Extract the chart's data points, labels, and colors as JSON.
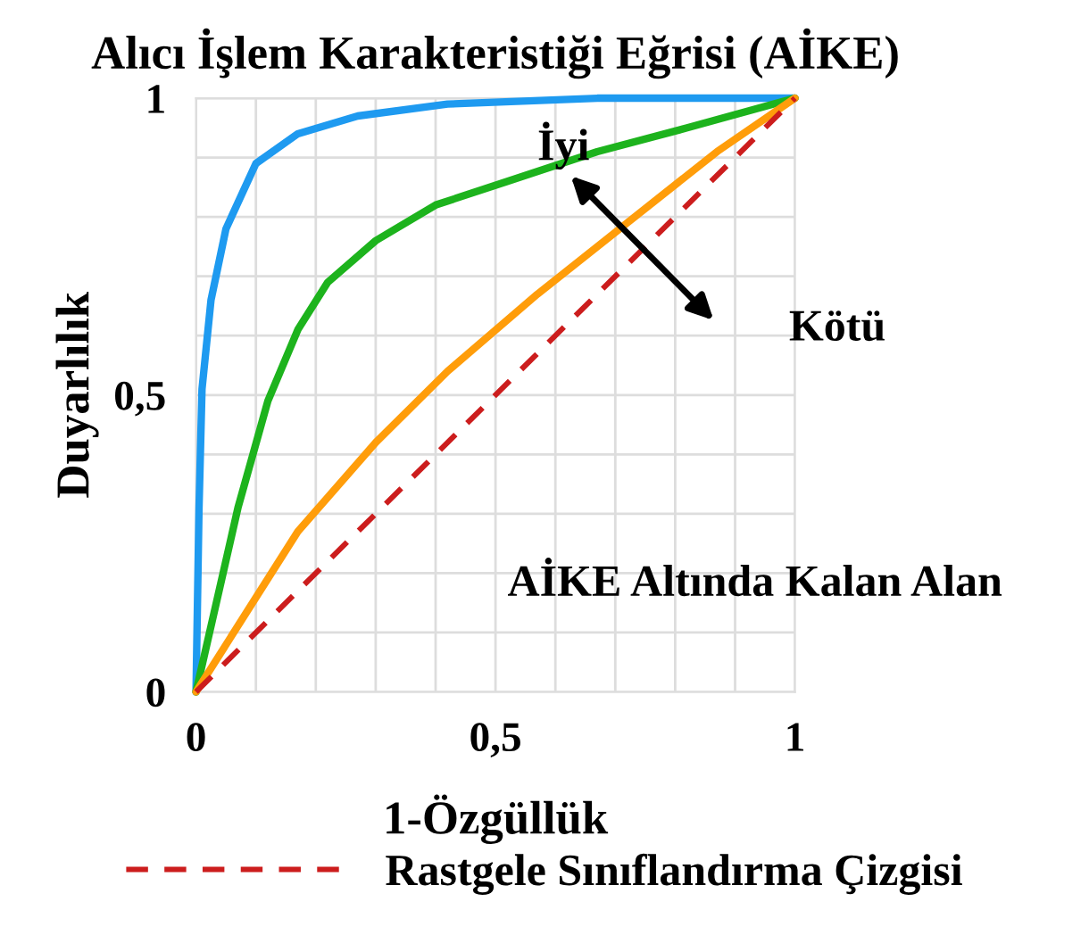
{
  "chart_data": {
    "type": "line",
    "title": "Alıcı İşlem Karakteristiği Eğrisi (AİKE)",
    "xlabel": "1-Özgüllük",
    "ylabel": "Duyarlılık",
    "xlim": [
      0,
      1
    ],
    "ylim": [
      0,
      1
    ],
    "xticks": [
      0,
      {
        "value": 0.1,
        "label": null
      },
      {
        "value": 0.2,
        "label": null
      },
      {
        "value": 0.3,
        "label": null
      },
      {
        "value": 0.4,
        "label": null
      },
      {
        "value": 0.5,
        "label": "0,5"
      },
      {
        "value": 0.6,
        "label": null
      },
      {
        "value": 0.7,
        "label": null
      },
      {
        "value": 0.8,
        "label": null
      },
      {
        "value": 0.9,
        "label": null
      },
      1
    ],
    "yticks": [
      0,
      {
        "value": 0.1,
        "label": null
      },
      {
        "value": 0.2,
        "label": null
      },
      {
        "value": 0.3,
        "label": null
      },
      {
        "value": 0.4,
        "label": null
      },
      {
        "value": 0.5,
        "label": "0,5"
      },
      {
        "value": 0.6,
        "label": null
      },
      {
        "value": 0.7,
        "label": null
      },
      {
        "value": 0.8,
        "label": null
      },
      {
        "value": 0.9,
        "label": null
      },
      1
    ],
    "grid": true,
    "legend": "bottom",
    "marker": "none",
    "annotations": [
      "İyi",
      "Kötü",
      "AİKE Altında Kalan Alan"
    ],
    "series": [
      {
        "color": "#1e9af0",
        "line_style": "solid",
        "x": [
          0,
          0.005,
          0.01,
          0.025,
          0.05,
          0.1,
          0.17,
          0.27,
          0.42,
          0.67,
          1
        ],
        "values": [
          0,
          0.31,
          0.51,
          0.66,
          0.78,
          0.89,
          0.94,
          0.97,
          0.99,
          1.0,
          1
        ]
      },
      {
        "color": "#1db31d",
        "line_style": "solid",
        "x": [
          0,
          0.07,
          0.12,
          0.17,
          0.22,
          0.3,
          0.4,
          0.52,
          0.67,
          0.82,
          1
        ],
        "values": [
          0,
          0.31,
          0.49,
          0.61,
          0.69,
          0.76,
          0.82,
          0.86,
          0.91,
          0.95,
          1
        ]
      },
      {
        "color": "#ff9d0a",
        "line_style": "solid",
        "x": [
          0,
          0.17,
          0.3,
          0.42,
          0.57,
          0.72,
          0.87,
          1
        ],
        "values": [
          0,
          0.27,
          0.42,
          0.54,
          0.67,
          0.79,
          0.91,
          1
        ]
      },
      {
        "name": "Rastgele Sınıflandırma Çizgisi",
        "color": "#cc1d1d",
        "line_style": "dashed",
        "x": [
          0,
          1
        ],
        "values": [
          0,
          1
        ]
      }
    ]
  }
}
